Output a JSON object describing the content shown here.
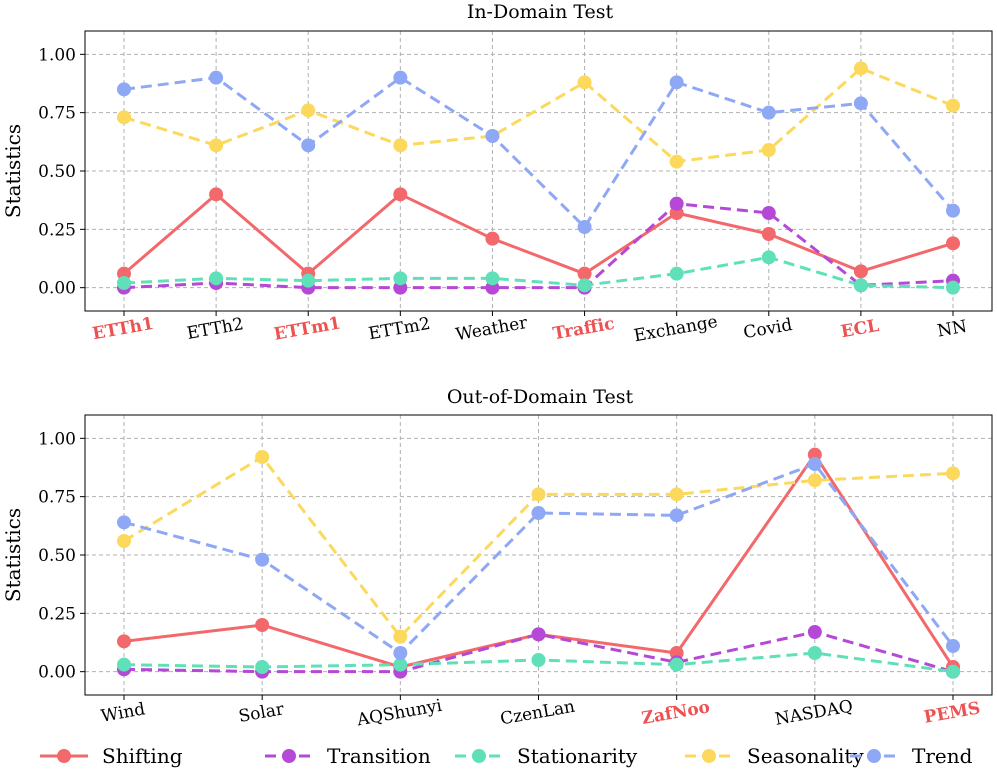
{
  "chart_data": [
    {
      "type": "line",
      "title": "In-Domain Test",
      "xlabel": "",
      "ylabel": "Statistics",
      "ylim": [
        -0.1,
        1.1
      ],
      "yticks": [
        "0.00",
        "0.25",
        "0.50",
        "0.75",
        "1.00"
      ],
      "grid": true,
      "categories": [
        "ETTh1",
        "ETTh2",
        "ETTm1",
        "ETTm2",
        "Weather",
        "Traffic",
        "Exchange",
        "Covid",
        "ECL",
        "NN"
      ],
      "highlighted_categories": [
        "ETTh1",
        "ETTm1",
        "Traffic",
        "ECL"
      ],
      "series": [
        {
          "name": "Shifting",
          "values": [
            0.06,
            0.4,
            0.06,
            0.4,
            0.21,
            0.06,
            0.32,
            0.23,
            0.07,
            0.19
          ]
        },
        {
          "name": "Transition",
          "values": [
            0.0,
            0.02,
            0.0,
            0.0,
            0.0,
            0.0,
            0.36,
            0.32,
            0.01,
            0.03
          ]
        },
        {
          "name": "Stationarity",
          "values": [
            0.02,
            0.04,
            0.03,
            0.04,
            0.04,
            0.01,
            0.06,
            0.13,
            0.01,
            0.0
          ]
        },
        {
          "name": "Seasonality",
          "values": [
            0.73,
            0.61,
            0.76,
            0.61,
            0.65,
            0.88,
            0.54,
            0.59,
            0.94,
            0.78
          ]
        },
        {
          "name": "Trend",
          "values": [
            0.85,
            0.9,
            0.61,
            0.9,
            0.65,
            0.26,
            0.88,
            0.75,
            0.79,
            0.33
          ]
        }
      ]
    },
    {
      "type": "line",
      "title": "Out-of-Domain Test",
      "xlabel": "",
      "ylabel": "Statistics",
      "ylim": [
        -0.1,
        1.1
      ],
      "yticks": [
        "0.00",
        "0.25",
        "0.50",
        "0.75",
        "1.00"
      ],
      "grid": true,
      "categories": [
        "Wind",
        "Solar",
        "AQShunyi",
        "CzenLan",
        "ZafNoo",
        "NASDAQ",
        "PEMS"
      ],
      "highlighted_categories": [
        "ZafNoo",
        "PEMS"
      ],
      "series": [
        {
          "name": "Shifting",
          "values": [
            0.13,
            0.2,
            0.02,
            0.16,
            0.08,
            0.93,
            0.02
          ]
        },
        {
          "name": "Transition",
          "values": [
            0.01,
            0.0,
            0.0,
            0.16,
            0.04,
            0.17,
            0.0
          ]
        },
        {
          "name": "Stationarity",
          "values": [
            0.03,
            0.02,
            0.03,
            0.05,
            0.03,
            0.08,
            0.0
          ]
        },
        {
          "name": "Seasonality",
          "values": [
            0.56,
            0.92,
            0.15,
            0.76,
            0.76,
            0.82,
            0.85
          ]
        },
        {
          "name": "Trend",
          "values": [
            0.64,
            0.48,
            0.08,
            0.68,
            0.67,
            0.89,
            0.11
          ]
        }
      ]
    }
  ],
  "legend": {
    "placement": "bottom",
    "entries": [
      {
        "name": "Shifting",
        "color": "#f2686b",
        "dashed": false
      },
      {
        "name": "Transition",
        "color": "#b548d6",
        "dashed": true
      },
      {
        "name": "Stationarity",
        "color": "#5fe0b8",
        "dashed": true
      },
      {
        "name": "Seasonality",
        "color": "#fcd95c",
        "dashed": true
      },
      {
        "name": "Trend",
        "color": "#8fa8f5",
        "dashed": true
      }
    ]
  },
  "colors": {
    "Shifting": "#f2686b",
    "Transition": "#b548d6",
    "Stationarity": "#5fe0b8",
    "Seasonality": "#fcd95c",
    "Trend": "#8fa8f5",
    "highlight_label": "#ee5151"
  }
}
